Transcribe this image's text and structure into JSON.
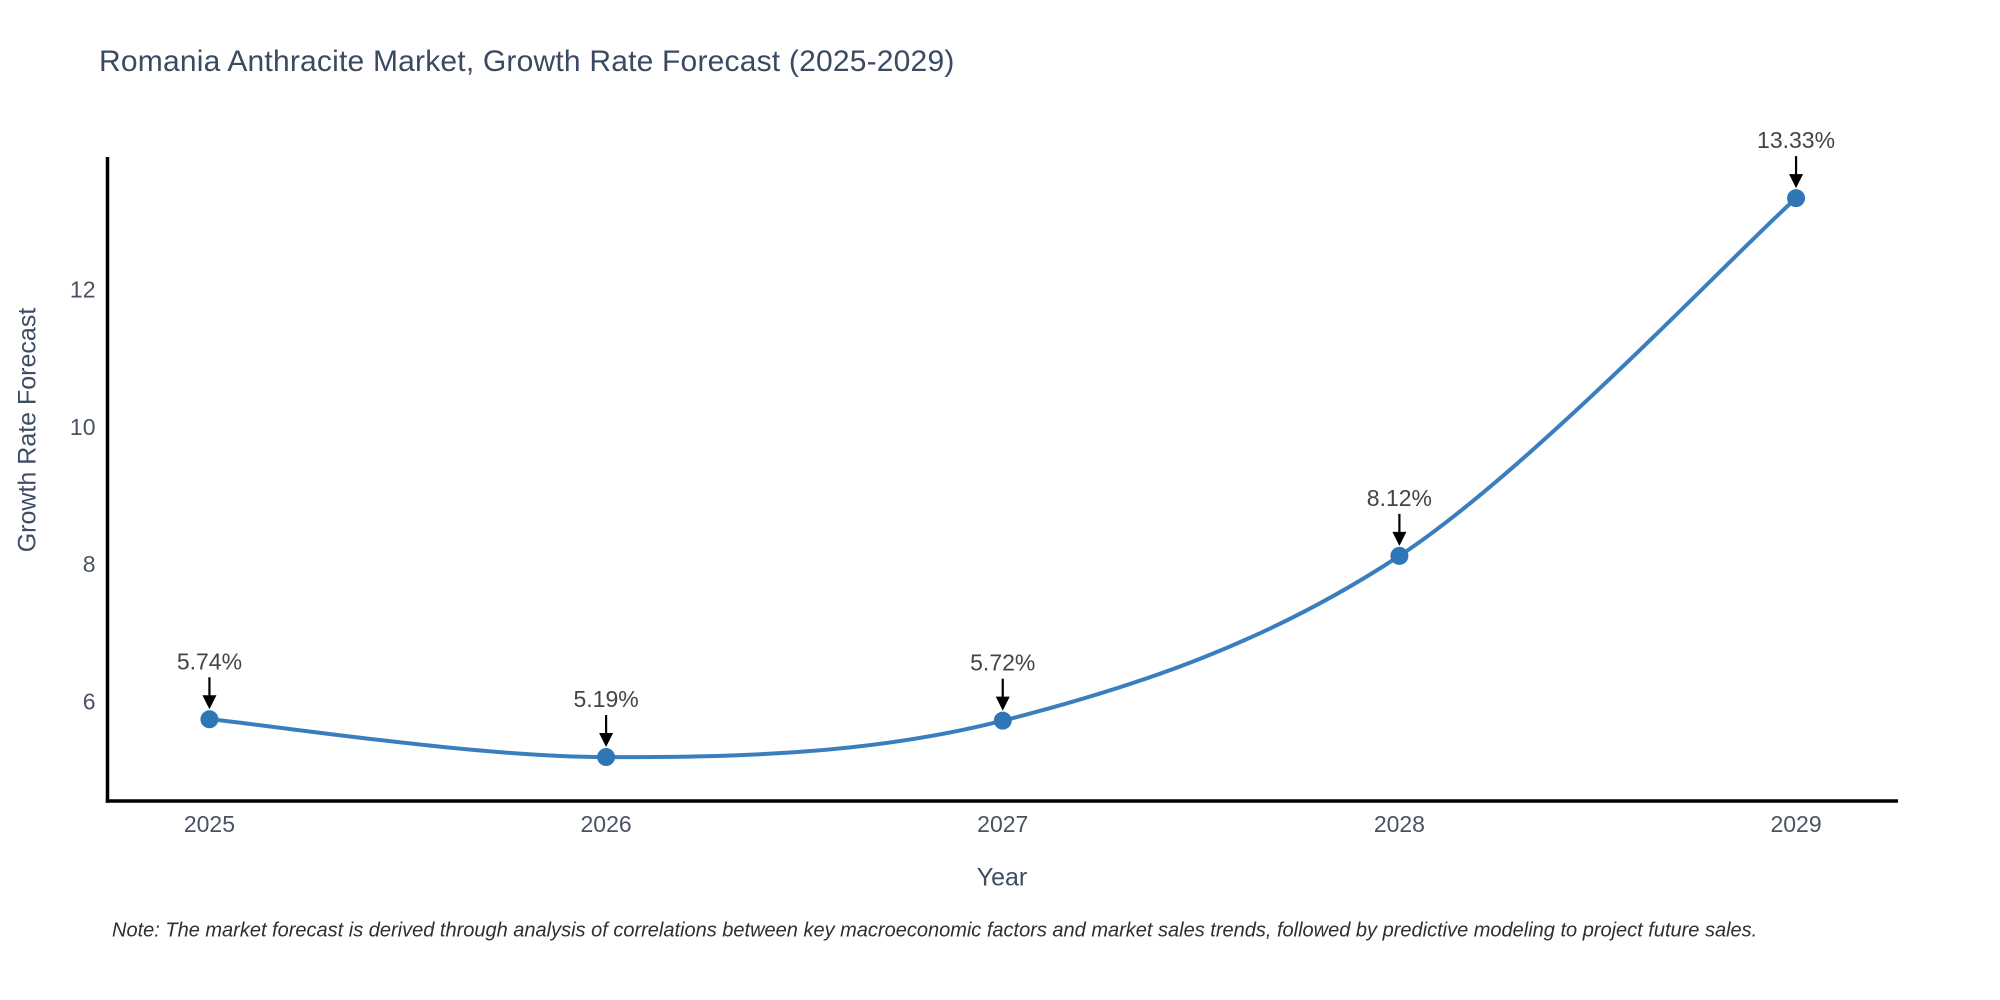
{
  "chart": {
    "title": "Romania Anthracite Market, Growth Rate Forecast (2025-2029)",
    "xlabel": "Year",
    "ylabel": "Growth Rate Forecast",
    "note": "Note: The market forecast is derived through analysis of correlations between key macroeconomic factors and market sales trends, followed by predictive modeling to project future sales."
  },
  "chart_data": {
    "type": "line",
    "title": "Romania Anthracite Market, Growth Rate Forecast (2025-2029)",
    "xlabel": "Year",
    "ylabel": "Growth Rate Forecast",
    "x": [
      2025,
      2026,
      2027,
      2028,
      2029
    ],
    "values": [
      5.74,
      5.19,
      5.72,
      8.12,
      13.33
    ],
    "point_labels": [
      "5.74%",
      "5.19%",
      "5.72%",
      "8.12%",
      "13.33%"
    ],
    "xtick_labels": [
      "2025",
      "2026",
      "2027",
      "2028",
      "2029"
    ],
    "ytick_values": [
      6,
      8,
      10,
      12
    ],
    "xlim": [
      2024.743,
      2029.257
    ],
    "ylim": [
      4.55,
      13.9
    ],
    "grid": false,
    "legend": "none",
    "line_shape": "spline",
    "annotation_arrows": true,
    "colors": {
      "line": "#3a7ebf",
      "marker": "#2e76b6",
      "axis_line": "#000000",
      "tick_label": "#4a5261",
      "annotation_text": "#444444",
      "arrow": "#000000",
      "background": "#ffffff"
    }
  }
}
